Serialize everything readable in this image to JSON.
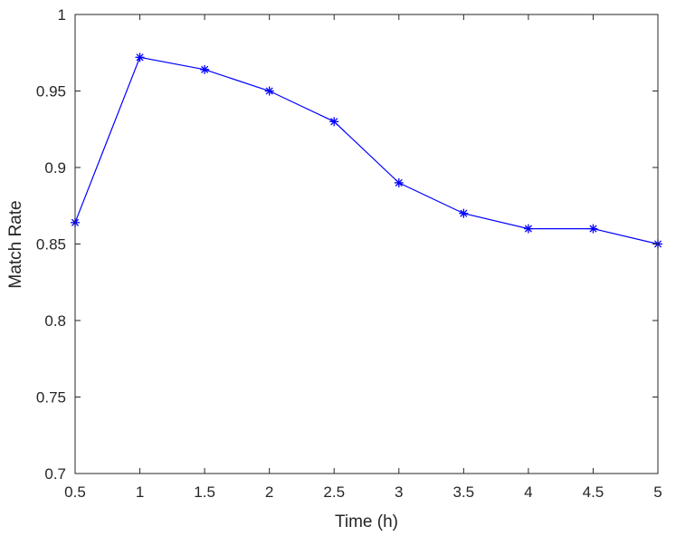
{
  "chart_data": {
    "type": "line",
    "title": "",
    "xlabel": "Time (h)",
    "ylabel": "Match Rate",
    "xlim": [
      0.5,
      5
    ],
    "ylim": [
      0.7,
      1
    ],
    "xticks": [
      0.5,
      1,
      1.5,
      2,
      2.5,
      3,
      3.5,
      4,
      4.5,
      5
    ],
    "xtick_labels": [
      "0.5",
      "1",
      "1.5",
      "2",
      "2.5",
      "3",
      "3.5",
      "4",
      "4.5",
      "5"
    ],
    "yticks": [
      0.7,
      0.75,
      0.8,
      0.85,
      0.9,
      0.95,
      1
    ],
    "ytick_labels": [
      "0.7",
      "0.75",
      "0.8",
      "0.85",
      "0.9",
      "0.95",
      "1"
    ],
    "grid": false,
    "series": [
      {
        "color": "#0000ff",
        "marker": "asterisk",
        "x": [
          0.5,
          1,
          1.5,
          2,
          2.5,
          3,
          3.5,
          4,
          4.5,
          5
        ],
        "y": [
          0.864,
          0.972,
          0.964,
          0.95,
          0.93,
          0.89,
          0.87,
          0.86,
          0.86,
          0.85
        ]
      }
    ]
  }
}
